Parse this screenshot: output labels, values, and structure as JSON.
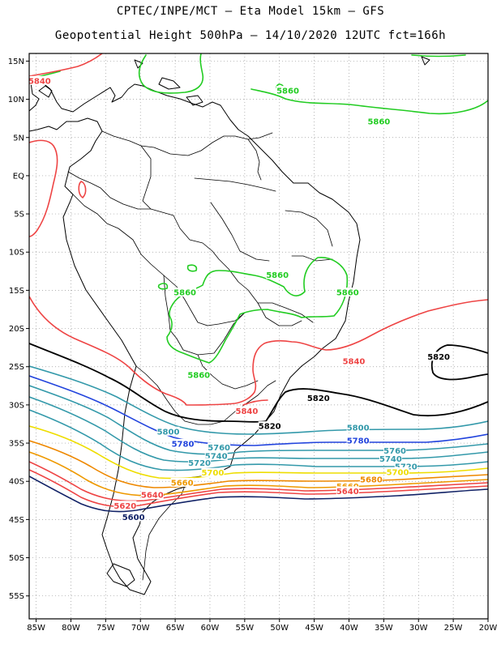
{
  "title": {
    "line1": "CPTEC/INPE/MCT –  Eta Model 15km – GFS",
    "line2": "Geopotential Height 500hPa – 14/10/2020 12UTC fct=166h"
  },
  "axes": {
    "lat_labels": [
      "15N",
      "10N",
      "5N",
      "EQ",
      "5S",
      "10S",
      "15S",
      "20S",
      "25S",
      "30S",
      "35S",
      "40S",
      "45S",
      "50S",
      "55S"
    ],
    "lat_values": [
      15,
      10,
      5,
      0,
      -5,
      -10,
      -15,
      -20,
      -25,
      -30,
      -35,
      -40,
      -45,
      -50,
      -55
    ],
    "lon_labels": [
      "85W",
      "80W",
      "75W",
      "70W",
      "65W",
      "60W",
      "55W",
      "50W",
      "45W",
      "40W",
      "35W",
      "30W",
      "25W",
      "20W"
    ],
    "lon_values": [
      -85,
      -80,
      -75,
      -70,
      -65,
      -60,
      -55,
      -50,
      -45,
      -40,
      -35,
      -30,
      -25,
      -20
    ],
    "lon_range": [
      -86,
      -20
    ],
    "lat_range": [
      -58,
      16
    ],
    "grid": "dotted"
  },
  "colors": {
    "5860": "#22cc22",
    "5840": "#ee4444",
    "5820": "#000000",
    "5800": "#3399aa",
    "5780": "#2244dd",
    "5760": "#3399aa",
    "5740": "#3399aa",
    "5720": "#3399aa",
    "5700": "#eedd00",
    "5680": "#ee8800",
    "5660": "#ee9900",
    "5640": "#ee4444",
    "5620": "#ee4444",
    "5600": "#112266",
    "coast": "#000000"
  },
  "contour_labels": [
    {
      "text": "5840",
      "color": "5840",
      "lon": -84.5,
      "lat": 12.2
    },
    {
      "text": "5860",
      "color": "5860",
      "lon": -48.8,
      "lat": 10.9
    },
    {
      "text": "5860",
      "color": "5860",
      "lon": -35.7,
      "lat": 6.9
    },
    {
      "text": "5860",
      "color": "5860",
      "lon": -50.3,
      "lat": -13.2
    },
    {
      "text": "5860",
      "color": "5860",
      "lon": -40.2,
      "lat": -15.5
    },
    {
      "text": "5860",
      "color": "5860",
      "lon": -63.6,
      "lat": -15.5
    },
    {
      "text": "5860",
      "color": "5860",
      "lon": -61.6,
      "lat": -26.3
    },
    {
      "text": "5840",
      "color": "5840",
      "lon": -39.3,
      "lat": -24.5
    },
    {
      "text": "5840",
      "color": "5840",
      "lon": -54.7,
      "lat": -31.0
    },
    {
      "text": "5820",
      "color": "5820",
      "lon": -27.1,
      "lat": -23.9
    },
    {
      "text": "5820",
      "color": "5820",
      "lon": -44.4,
      "lat": -29.3
    },
    {
      "text": "5820",
      "color": "5820",
      "lon": -51.4,
      "lat": -33.0
    },
    {
      "text": "5800",
      "color": "5800",
      "lon": -66.0,
      "lat": -33.7
    },
    {
      "text": "5800",
      "color": "5800",
      "lon": -38.7,
      "lat": -33.2
    },
    {
      "text": "5780",
      "color": "5780",
      "lon": -63.9,
      "lat": -35.3
    },
    {
      "text": "5780",
      "color": "5780",
      "lon": -38.7,
      "lat": -34.9
    },
    {
      "text": "5760",
      "color": "5760",
      "lon": -58.7,
      "lat": -35.8
    },
    {
      "text": "5740",
      "color": "5740",
      "lon": -59.1,
      "lat": -36.9
    },
    {
      "text": "5720",
      "color": "5720",
      "lon": -61.5,
      "lat": -37.8
    },
    {
      "text": "5760",
      "color": "5760",
      "lon": -33.4,
      "lat": -36.2
    },
    {
      "text": "5740",
      "color": "5740",
      "lon": -34.0,
      "lat": -37.3
    },
    {
      "text": "5720",
      "color": "5720",
      "lon": -31.8,
      "lat": -38.3
    },
    {
      "text": "5700",
      "color": "5700",
      "lon": -59.6,
      "lat": -39.1
    },
    {
      "text": "5700",
      "color": "5700",
      "lon": -33.0,
      "lat": -39.0
    },
    {
      "text": "5680",
      "color": "5680",
      "lon": -36.8,
      "lat": -40.0
    },
    {
      "text": "5660",
      "color": "5660",
      "lon": -64.0,
      "lat": -40.4
    },
    {
      "text": "5660",
      "color": "5660",
      "lon": -40.2,
      "lat": -40.9
    },
    {
      "text": "5640",
      "color": "5640",
      "lon": -40.2,
      "lat": -41.5
    },
    {
      "text": "5640",
      "color": "5640",
      "lon": -68.3,
      "lat": -42.0
    },
    {
      "text": "5620",
      "color": "5620",
      "lon": -72.2,
      "lat": -43.4
    },
    {
      "text": "5600",
      "color": "5600",
      "lon": -71.0,
      "lat": -44.9
    }
  ]
}
